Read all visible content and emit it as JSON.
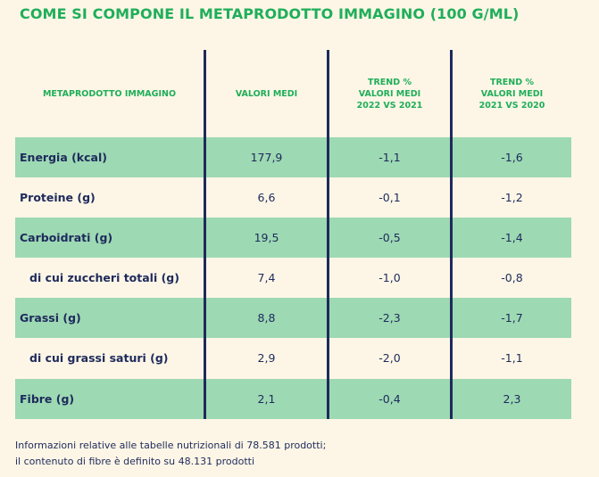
{
  "title": "COME SI COMPONE IL METAPRODOTTO IMMAGINO (100 G/ML)",
  "header": {
    "col0": "METAPRODOTTO IMMAGINO",
    "col1": "VALORI MEDI",
    "col2_line1": "TREND %",
    "col2_line2": "VALORI MEDI",
    "col2_line3": "2022 VS 2021",
    "col3_line1": "TREND %",
    "col3_line2": "VALORI MEDI",
    "col3_line3": "2021 VS 2020"
  },
  "rows": [
    {
      "label": "Energia (kcal)",
      "valore": "177,9",
      "trend_22_21": "-1,1",
      "trend_21_20": "-1,6"
    },
    {
      "label": "Proteine (g)",
      "valore": "6,6",
      "trend_22_21": "-0,1",
      "trend_21_20": "-1,2"
    },
    {
      "label": "Carboidrati (g)",
      "valore": "19,5",
      "trend_22_21": "-0,5",
      "trend_21_20": "-1,4"
    },
    {
      "label": "di cui zuccheri totali (g)",
      "valore": "7,4",
      "trend_22_21": "-1,0",
      "trend_21_20": "-0,8"
    },
    {
      "label": "Grassi (g)",
      "valore": "8,8",
      "trend_22_21": "-2,3",
      "trend_21_20": "-1,7"
    },
    {
      "label": "di cui grassi saturi (g)",
      "valore": "2,9",
      "trend_22_21": "-2,0",
      "trend_21_20": "-1,1"
    },
    {
      "label": "Fibre (g)",
      "valore": "2,1",
      "trend_22_21": "-0,4",
      "trend_21_20": "2,3"
    }
  ],
  "footnote": {
    "line1": "Informazioni relative alle tabelle nutrizionali di 78.581 prodotti;",
    "line2": "il contenuto di fibre è definito su 48.131 prodotti"
  },
  "colors": {
    "title": "#1fae5a",
    "row_green": "#9dd9b3",
    "background": "#fdf6e6",
    "text": "#1e2a5c"
  }
}
